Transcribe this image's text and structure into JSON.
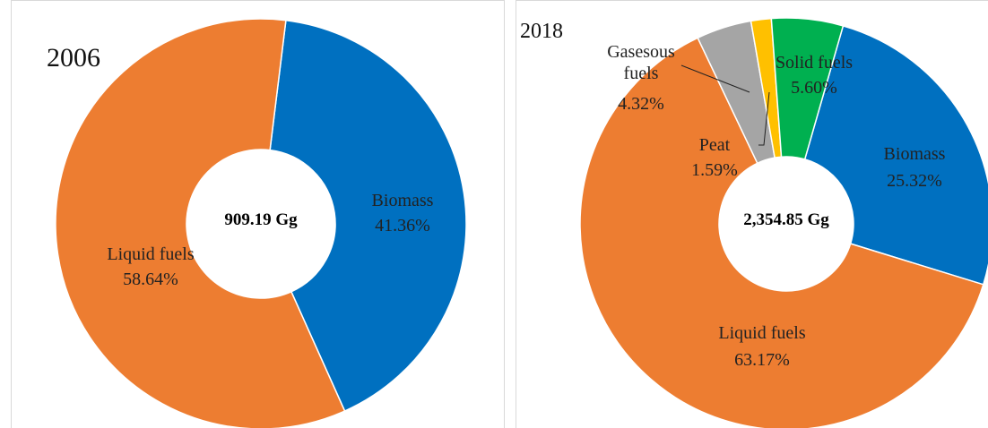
{
  "chart_data": [
    {
      "type": "pie",
      "title": "2006",
      "center_label": "909.19 Gg",
      "categories": [
        "Biomass",
        "Liquid fuels"
      ],
      "values": [
        41.36,
        58.64
      ],
      "value_labels": [
        "41.36%",
        "58.64%"
      ],
      "colors": [
        "#0070c0",
        "#ed7d31"
      ]
    },
    {
      "type": "pie",
      "title": "2018",
      "center_label": "2,354.85 Gg",
      "categories": [
        "Biomass",
        "Liquid fuels",
        "Gasesous fuels",
        "Peat",
        "Solid fuels"
      ],
      "values": [
        25.32,
        63.17,
        4.32,
        1.59,
        5.6
      ],
      "value_labels": [
        "25.32%",
        "63.17%",
        "4.32%",
        "1.59%",
        "5.60%"
      ],
      "colors": [
        "#0070c0",
        "#ed7d31",
        "#a5a5a5",
        "#ffc000",
        "#00b050"
      ]
    }
  ]
}
